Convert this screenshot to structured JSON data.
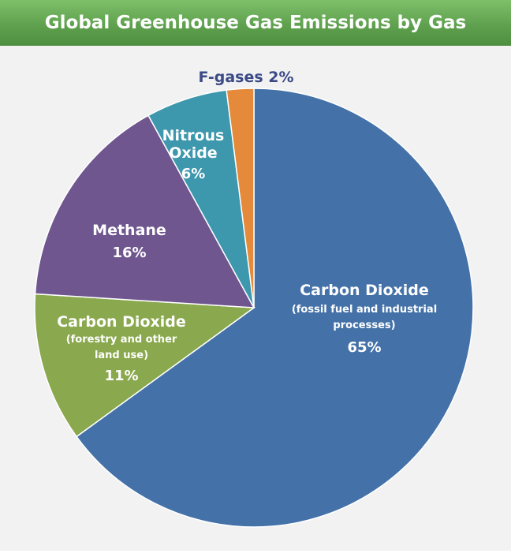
{
  "header": {
    "title": "Global Greenhouse Gas Emissions by Gas"
  },
  "chart_data": {
    "type": "pie",
    "title": "Global Greenhouse Gas Emissions by Gas",
    "slices": [
      {
        "name": "Carbon Dioxide",
        "detail": [
          "(fossil fuel and industrial",
          "processes)"
        ],
        "value": 65,
        "label": "65%",
        "color": "#4472a8"
      },
      {
        "name": "Carbon Dioxide",
        "detail": [
          "(forestry and other",
          "land use)"
        ],
        "value": 11,
        "label": "11%",
        "color": "#8aa84d"
      },
      {
        "name": "Methane",
        "detail": [],
        "value": 16,
        "label": "16%",
        "color": "#6f568f"
      },
      {
        "name": "Nitrous Oxide",
        "name_lines": [
          "Nitrous",
          "Oxide"
        ],
        "detail": [],
        "value": 6,
        "label": "6%",
        "color": "#3d97ad"
      },
      {
        "name": "F-gases",
        "detail": [],
        "value": 2,
        "label": "2%",
        "color": "#e5893a"
      }
    ],
    "start_angle_deg": 0,
    "direction": "clockwise"
  }
}
